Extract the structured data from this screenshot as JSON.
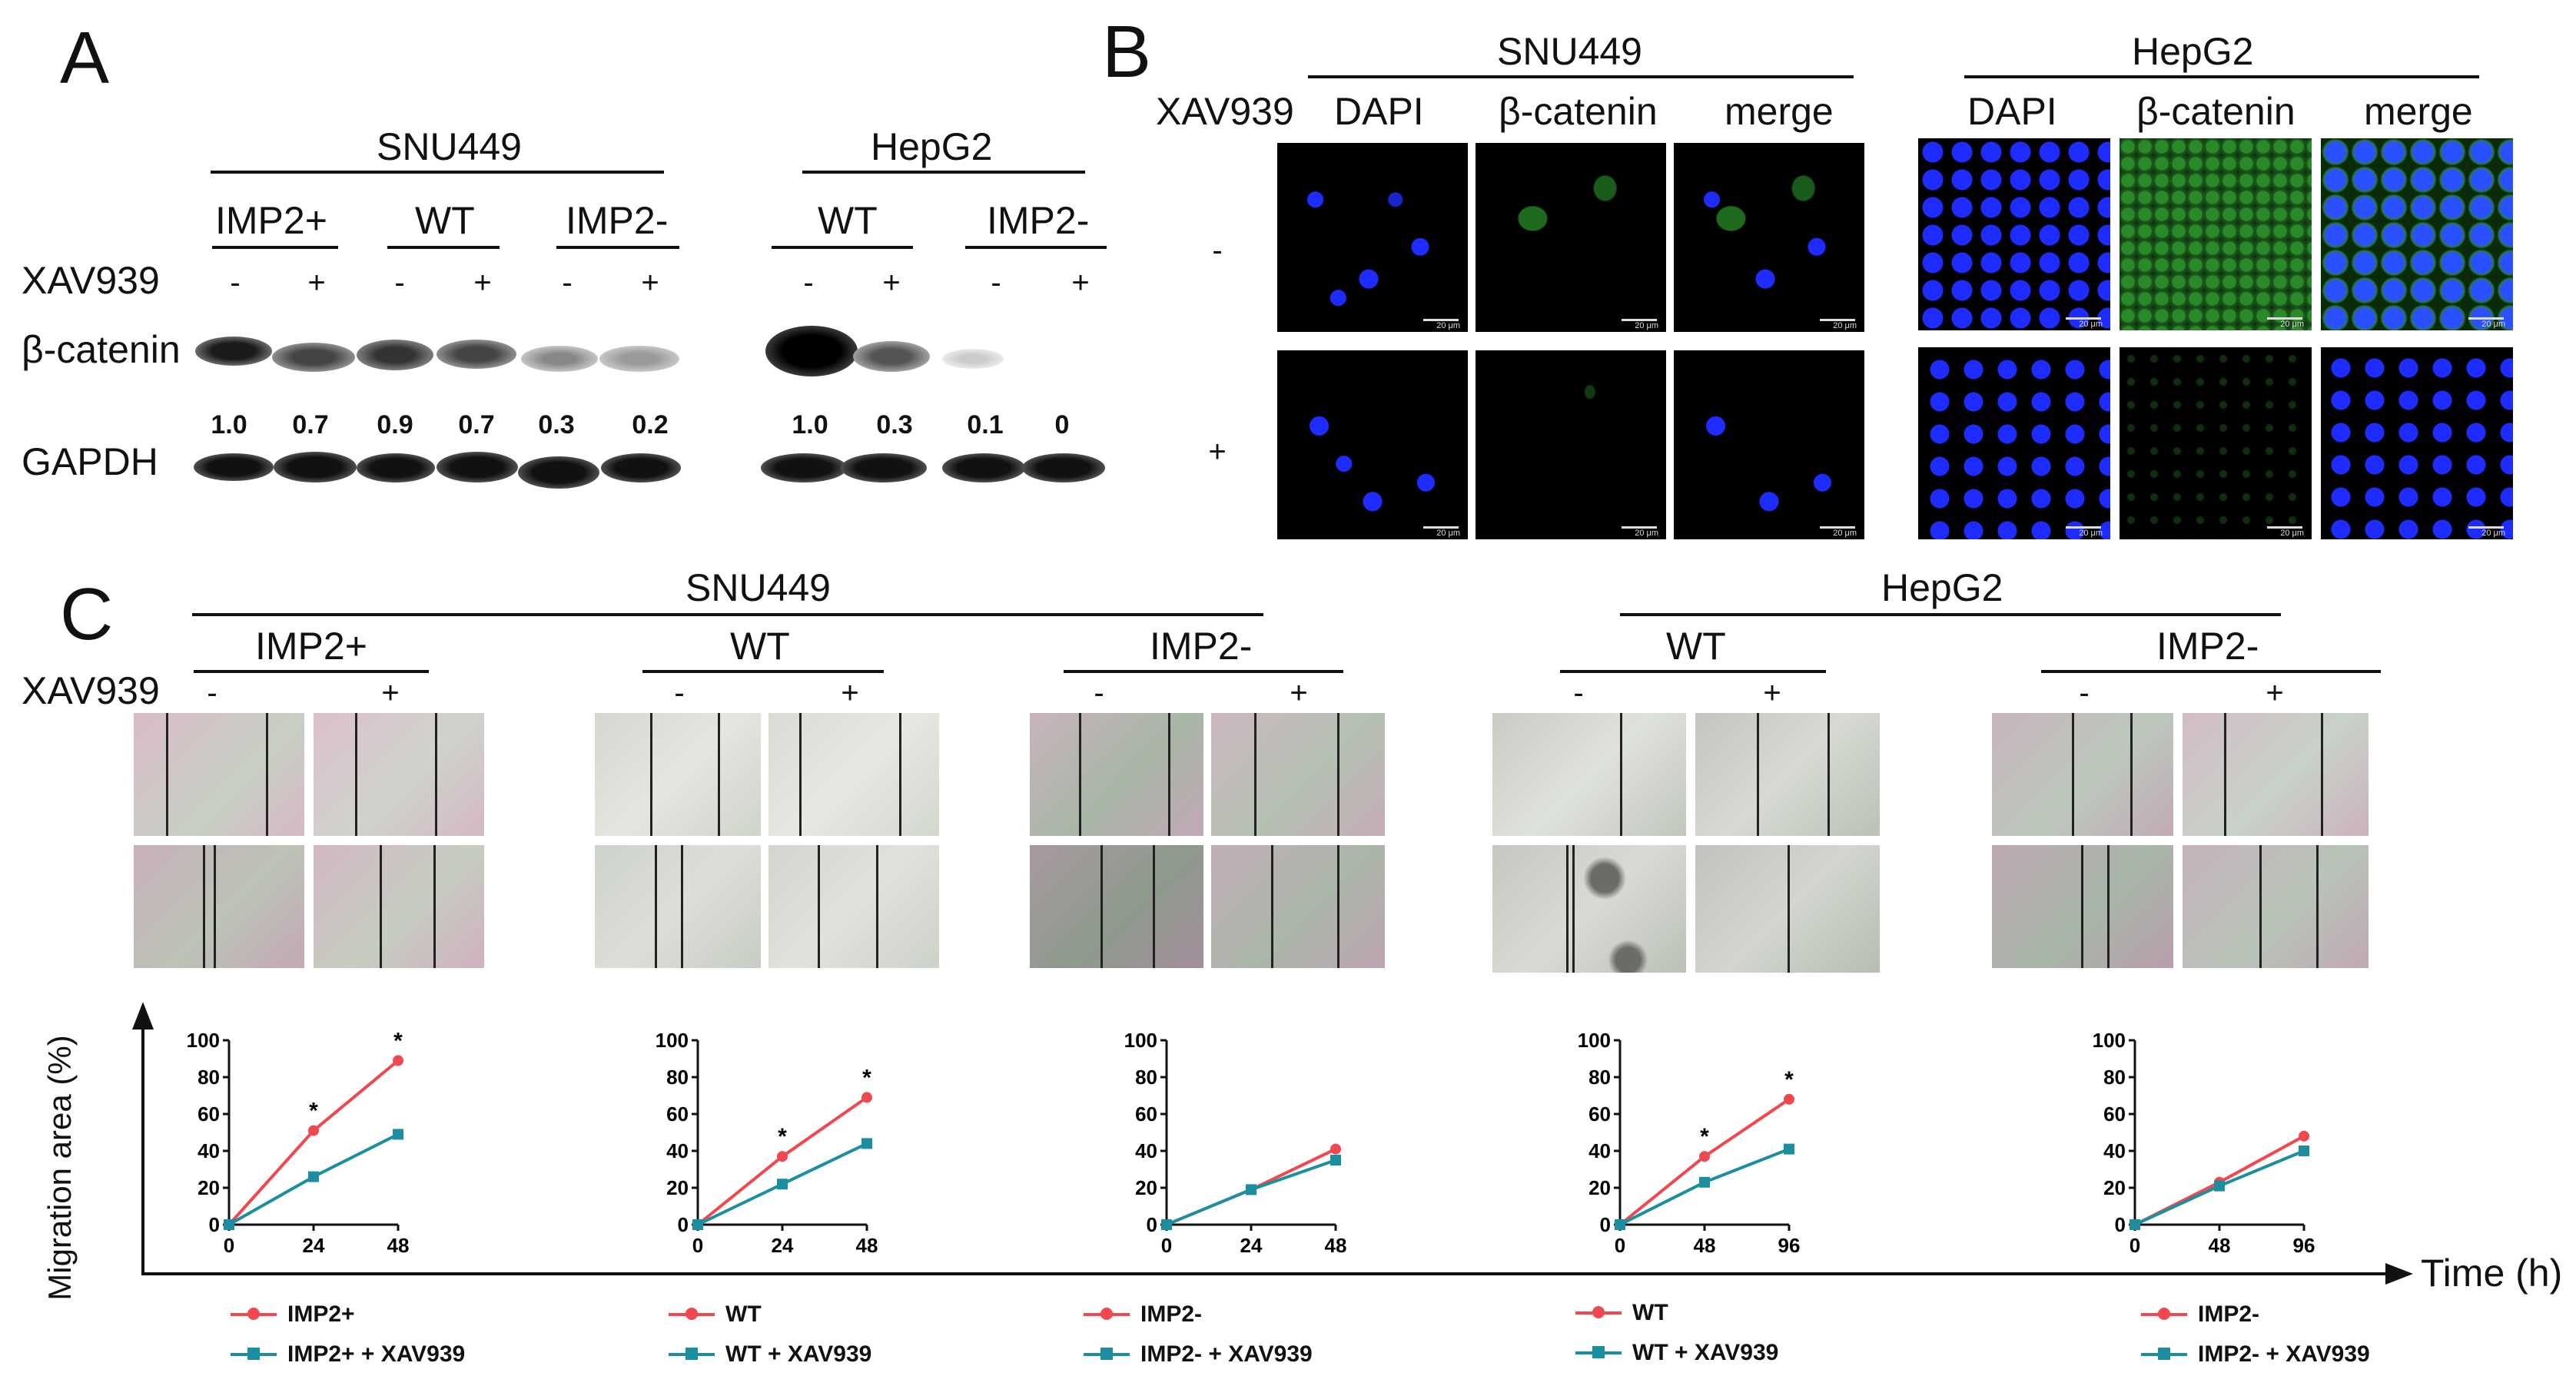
{
  "panel_a": {
    "letter": "A",
    "snu_group": "SNU449",
    "hep_group": "HepG2",
    "snu_sub": [
      "IMP2+",
      "WT",
      "IMP2-"
    ],
    "hep_sub": [
      "WT",
      "IMP2-"
    ],
    "xav_label": "XAV939",
    "signs": [
      "-",
      "+",
      "-",
      "+",
      "-",
      "+",
      "-",
      "+",
      "-",
      "+"
    ],
    "row_bcat": "β-catenin",
    "row_gapdh": "GAPDH",
    "snu_quant": [
      "1.0",
      "0.7",
      "0.9",
      "0.7",
      "0.3",
      "0.2"
    ],
    "hep_quant": [
      "1.0",
      "0.3",
      "0.1",
      "0"
    ]
  },
  "panel_b": {
    "letter": "B",
    "snu_group": "SNU449",
    "hep_group": "HepG2",
    "xav_label": "XAV939",
    "channels": [
      "DAPI",
      "β-catenin",
      "merge"
    ],
    "row_signs": [
      "-",
      "+"
    ],
    "scale_text": "20 μm"
  },
  "panel_c": {
    "letter": "C",
    "snu_group": "SNU449",
    "hep_group": "HepG2",
    "subgroups": [
      "IMP2+",
      "WT",
      "IMP2-",
      "WT",
      "IMP2-"
    ],
    "xav_label": "XAV939",
    "signs": [
      "-",
      "+"
    ],
    "y_axis_label": "Migration area (%)",
    "x_axis_label": "Time (h)"
  },
  "colors": {
    "control": "#f0484e",
    "xav": "#1b8fa0",
    "dapi": "#1f2cff",
    "bcat": "#2a8a2a"
  },
  "chart_data": [
    {
      "type": "line",
      "x": [
        0,
        24,
        48
      ],
      "ylim": [
        0,
        100
      ],
      "yticks": [
        0,
        20,
        40,
        60,
        80,
        100
      ],
      "series": [
        {
          "name": "IMP2+",
          "values": [
            0,
            51,
            89
          ]
        },
        {
          "name": "IMP2+ + XAV939",
          "values": [
            0,
            26,
            49
          ]
        }
      ],
      "significance": [
        24,
        48
      ],
      "sig_mark": "*"
    },
    {
      "type": "line",
      "x": [
        0,
        24,
        48
      ],
      "ylim": [
        0,
        100
      ],
      "yticks": [
        0,
        20,
        40,
        60,
        80,
        100
      ],
      "series": [
        {
          "name": "WT",
          "values": [
            0,
            37,
            69
          ]
        },
        {
          "name": "WT + XAV939",
          "values": [
            0,
            22,
            44
          ]
        }
      ],
      "significance": [
        24,
        48
      ],
      "sig_mark": "*"
    },
    {
      "type": "line",
      "x": [
        0,
        24,
        48
      ],
      "ylim": [
        0,
        100
      ],
      "yticks": [
        0,
        20,
        40,
        60,
        80,
        100
      ],
      "series": [
        {
          "name": "IMP2-",
          "values": [
            0,
            19,
            41
          ]
        },
        {
          "name": "IMP2- + XAV939",
          "values": [
            0,
            19,
            35
          ]
        }
      ],
      "significance": [],
      "sig_mark": "*"
    },
    {
      "type": "line",
      "x": [
        0,
        48,
        96
      ],
      "ylim": [
        0,
        100
      ],
      "yticks": [
        0,
        20,
        40,
        60,
        80,
        100
      ],
      "series": [
        {
          "name": "WT",
          "values": [
            0,
            37,
            68
          ]
        },
        {
          "name": "WT + XAV939",
          "values": [
            0,
            23,
            41
          ]
        }
      ],
      "significance": [
        48,
        96
      ],
      "sig_mark": "*"
    },
    {
      "type": "line",
      "x": [
        0,
        48,
        96
      ],
      "ylim": [
        0,
        100
      ],
      "yticks": [
        0,
        20,
        40,
        60,
        80,
        100
      ],
      "series": [
        {
          "name": "IMP2-",
          "values": [
            0,
            23,
            48
          ]
        },
        {
          "name": "IMP2- + XAV939",
          "values": [
            0,
            21,
            40
          ]
        }
      ],
      "significance": [],
      "sig_mark": "*"
    }
  ]
}
